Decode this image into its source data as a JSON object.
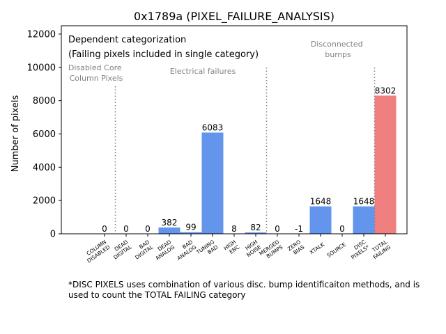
{
  "chart_data": {
    "type": "bar",
    "title": "0x1789a (PIXEL_FAILURE_ANALYSIS)",
    "ylabel": "Number of pixels",
    "xlabel": "",
    "ylim": [
      0,
      12500
    ],
    "yticks": [
      0,
      2000,
      4000,
      6000,
      8000,
      10000,
      12000
    ],
    "ytick_labels": [
      "0",
      "2000",
      "4000",
      "6000",
      "8000",
      "10000",
      "12000"
    ],
    "categories": [
      [
        "COLUMN",
        "DISABLED"
      ],
      [
        "DEAD",
        "DIGITAL"
      ],
      [
        "BAD",
        "DIGITAL"
      ],
      [
        "DEAD",
        "ANALOG"
      ],
      [
        "BAD",
        "ANALOG"
      ],
      [
        "TUNING",
        "BAD"
      ],
      [
        "HIGH",
        "ENC"
      ],
      [
        "HIGH",
        "NOISE"
      ],
      [
        "MERGED",
        "BUMPS"
      ],
      [
        "ZERO",
        "BIAS"
      ],
      [
        "XTALK"
      ],
      [
        "SOURCE"
      ],
      [
        "DISC",
        "PIXELS*"
      ],
      [
        "TOTAL",
        "FAILING"
      ]
    ],
    "values": [
      0,
      0,
      0,
      382,
      99,
      6083,
      8,
      82,
      0,
      -1,
      1648,
      0,
      1648,
      8302
    ],
    "value_labels": [
      "0",
      "0",
      "0",
      "382",
      "99",
      "6083",
      "8",
      "82",
      "0",
      "-1",
      "1648",
      "0",
      "1648",
      "8302"
    ],
    "colors": [
      "#6495ed",
      "#6495ed",
      "#6495ed",
      "#6495ed",
      "#6495ed",
      "#6495ed",
      "#6495ed",
      "#6495ed",
      "#6495ed",
      "#6495ed",
      "#6495ed",
      "#6495ed",
      "#6495ed",
      "#f08080"
    ],
    "separators_after": [
      0,
      7,
      12
    ],
    "annotations": {
      "box_line1": "Dependent categorization",
      "box_line2": "(Failing pixels included in single category)",
      "group_column": [
        "Disabled Core",
        "Column Pixels"
      ],
      "group_electrical": [
        "Electrical failures"
      ],
      "group_bumps": [
        "Disconnected",
        "bumps"
      ]
    },
    "footnote": [
      "*DISC PIXELS uses combination of various disc. bump identificaiton methods, and is",
      "used to count the TOTAL FAILING category"
    ],
    "annotation_color": "#808080",
    "separator_color": "#808080"
  }
}
